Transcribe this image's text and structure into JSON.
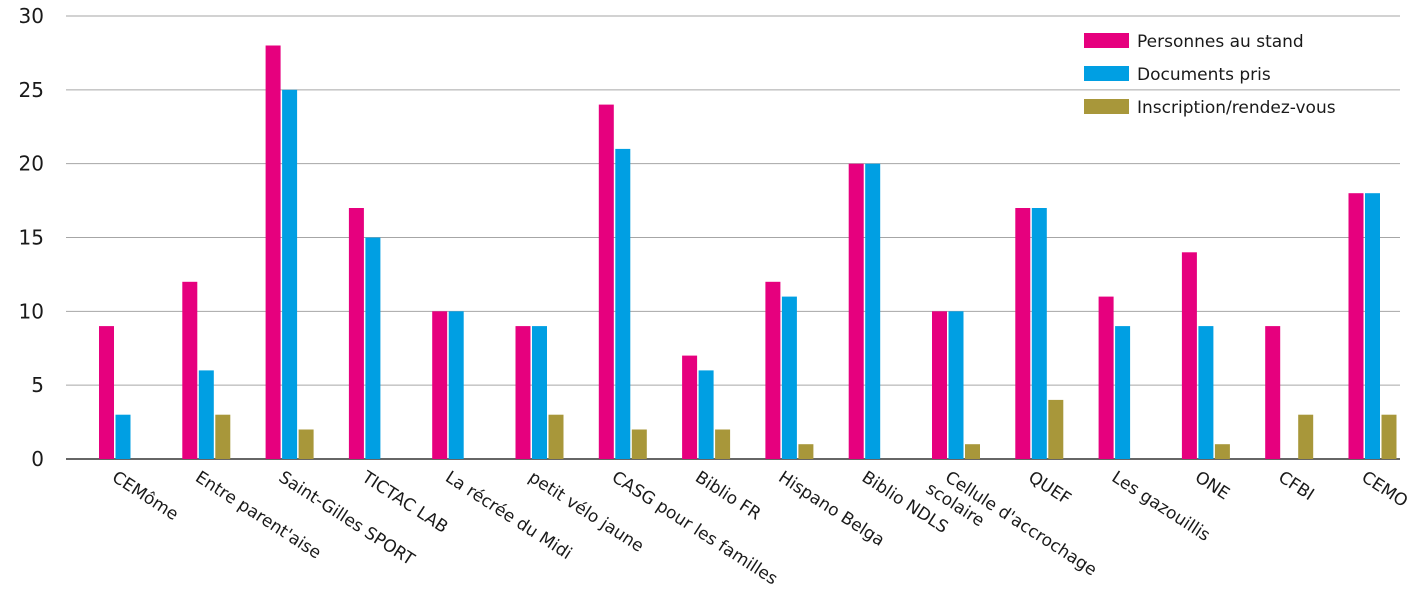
{
  "chart_data": {
    "type": "bar",
    "title": "",
    "xlabel": "",
    "ylabel": "",
    "ylim": [
      0,
      30
    ],
    "yticks": [
      0,
      5,
      10,
      15,
      20,
      25,
      30
    ],
    "grid": true,
    "legend_position": "top-right",
    "categories": [
      "CEMôme",
      "Entre parent'aise",
      "Saint-Gilles SPORT",
      "TICTAC LAB",
      "La récrée du Midi",
      "petit vélo jaune",
      "CASG pour les familles",
      "Biblio FR",
      "Hispano Belga",
      "Biblio NDLS",
      "Cellule d'accrochage scolaire",
      "QUEF",
      "Les gazouillis",
      "ONE",
      "CFBI",
      "CEMO"
    ],
    "series": [
      {
        "name": "Personnes au stand",
        "color": "#e6007e",
        "values": [
          9,
          12,
          28,
          17,
          10,
          9,
          24,
          7,
          12,
          20,
          10,
          17,
          11,
          14,
          9,
          18
        ]
      },
      {
        "name": "Documents pris",
        "color": "#009fe3",
        "values": [
          3,
          6,
          25,
          15,
          10,
          9,
          21,
          6,
          11,
          20,
          10,
          17,
          9,
          9,
          0,
          18
        ]
      },
      {
        "name": "Inscription/rendez-vous",
        "color": "#a8973a",
        "values": [
          0,
          3,
          2,
          0,
          0,
          3,
          2,
          2,
          1,
          0,
          1,
          4,
          0,
          1,
          3,
          3
        ]
      }
    ]
  }
}
